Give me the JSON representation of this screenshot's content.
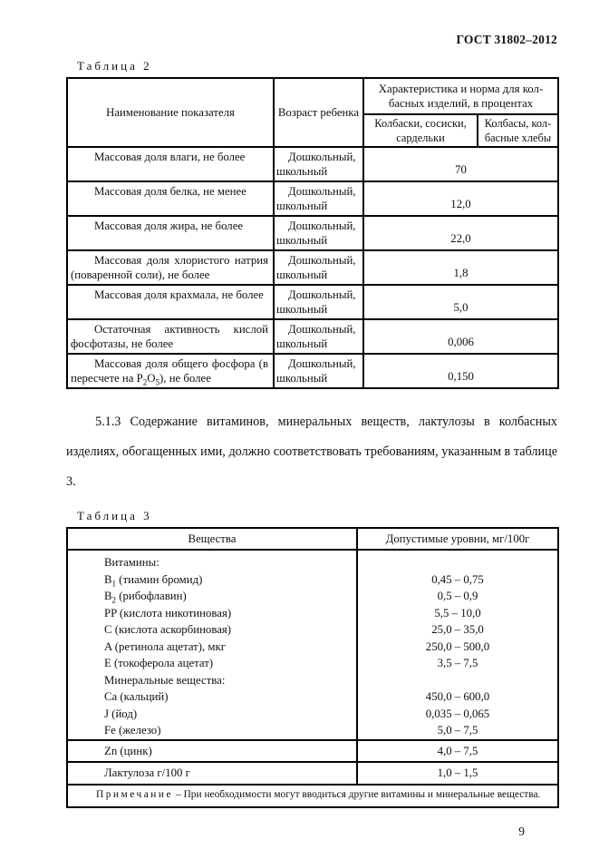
{
  "doc": {
    "code": "ГОСТ 31802–2012",
    "page_number": "9"
  },
  "table2": {
    "label": "Таблица 2",
    "header": {
      "col_indicator": "Наименование показателя",
      "col_age": "Возраст ребенка",
      "col_group": "Характеристика и норма для кол­басных изделий, в процентах",
      "col_sub1": "Колбаски, со­сиски, сардельки",
      "col_sub2": "Колбасы, кол­басные хлебы"
    },
    "rows": [
      {
        "name": "Массовая доля влаги, не более",
        "age": "Дошкольный, школьный",
        "value": "70"
      },
      {
        "name": "Массовая доля белка, не менее",
        "age": "Дошкольный, школьный",
        "value": "12,0"
      },
      {
        "name": "Массовая доля жира, не более",
        "age": "Дошкольный, школьный",
        "value": "22,0"
      },
      {
        "name": "Массовая доля хлористого на­трия (поваренной соли), не более",
        "age": "Дошкольный, школьный",
        "value": "1,8"
      },
      {
        "name": "Массовая доля крахмала, не более",
        "age": "Дошкольный, школьный",
        "value": "5,0"
      },
      {
        "name": "Остаточная активность кислой фосфотазы, не более",
        "age": "Дошкольный, школьный",
        "value": "0,006"
      },
      {
        "name": "Массовая доля общего фосфо­ра (в пересчете на P_{2}O_{5}), не более",
        "age": "Дошкольный, школьный",
        "value": "0,150"
      }
    ]
  },
  "paragraph_513": "5.1.3 Содержание витаминов, минеральных веществ, лактулозы в кол­басных изделиях, обогащенных ими, должно соответствовать требованиям, указанным в таблице 3.",
  "table3": {
    "label": "Таблица 3",
    "header": {
      "col_substance": "Вещества",
      "col_levels": "Допустимые уровни, мг/100г"
    },
    "group_rows": [
      {
        "name": "Витамины:",
        "value": ""
      },
      {
        "name": "B_{1} (тиамин бромид)",
        "value": "0,45 – 0,75"
      },
      {
        "name": "B_{2} (рибофлавин)",
        "value": "0,5 – 0,9"
      },
      {
        "name": "PP (кислота никотиновая)",
        "value": "5,5 – 10,0"
      },
      {
        "name": "C (кислота аскорбиновая)",
        "value": "25,0 – 35,0"
      },
      {
        "name": "A (ретинола ацетат), мкг",
        "value": "250,0 – 500,0"
      },
      {
        "name": "E (токоферола ацетат)",
        "value": "3,5 – 7,5"
      },
      {
        "name": "Минеральные вещества:",
        "value": ""
      },
      {
        "name": "Ca (кальций)",
        "value": "450,0 – 600,0"
      },
      {
        "name": "J (йод)",
        "value": "0,035 – 0,065"
      },
      {
        "name": "Fe (железо)",
        "value": "5,0 – 7,5"
      }
    ],
    "sep_rows": [
      {
        "name": "Zn (цинк)",
        "value": "4,0 – 7,5"
      },
      {
        "name": "Лактулоза г/100 г",
        "value": "1,0 – 1,5"
      }
    ],
    "note_label": "Примечание",
    "note_text": "– При необходимости могут вводиться другие витамины и минераль­ные вещества."
  }
}
